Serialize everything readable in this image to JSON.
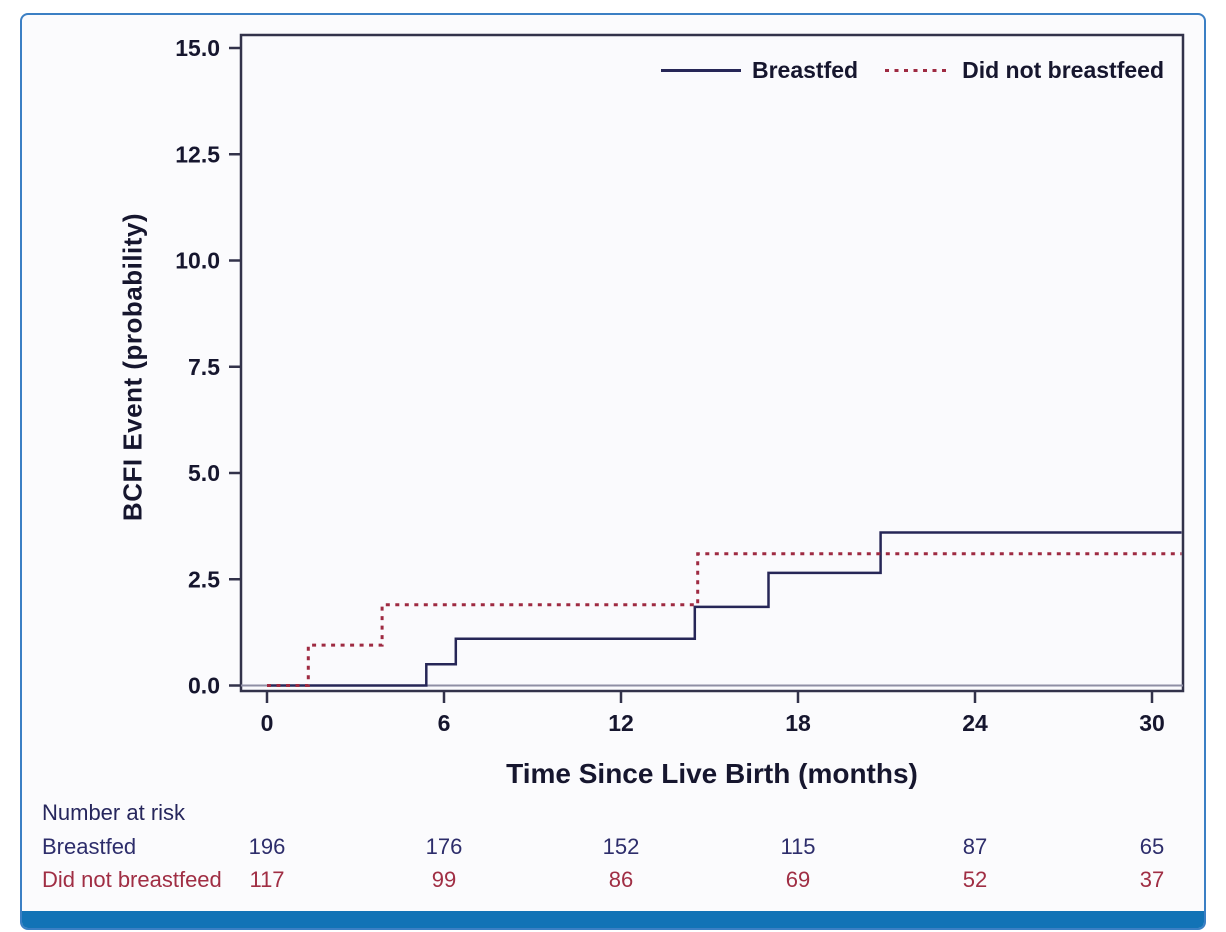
{
  "colors": {
    "frame": "#32324a",
    "tick_text": "#16162e",
    "axis_title_text": "#16162e",
    "zero_line": "#8f8fa5",
    "plot_background": "#fafafd",
    "figure_background": "#fbfbfd",
    "border": "#3b7fc4",
    "bottom_bar": "#1273b6",
    "risk_title_text": "#26265c"
  },
  "chart_data": {
    "type": "line",
    "subtype": "step-cumulative-incidence",
    "title": "",
    "xlabel": "Time Since Live Birth (months)",
    "ylabel": "BCFI Event (probability)",
    "xlim": [
      -1,
      31.2
    ],
    "ylim": [
      -0.2,
      15.35
    ],
    "xticks": [
      0,
      6,
      12,
      18,
      24,
      30
    ],
    "yticks": [
      0.0,
      2.5,
      5.0,
      7.5,
      10.0,
      12.5,
      15.0
    ],
    "grid": false,
    "legend_position": "top-right-inside",
    "zero_reference_line": true,
    "x_end": 31.0,
    "series": [
      {
        "name": "Breastfed",
        "color": "#262657",
        "line_style": "solid",
        "steps": [
          [
            0,
            0
          ],
          [
            5.4,
            0.5
          ],
          [
            6.4,
            1.1
          ],
          [
            14.5,
            1.85
          ],
          [
            17.0,
            2.65
          ],
          [
            20.8,
            3.6
          ]
        ]
      },
      {
        "name": "Did not breastfeed",
        "color": "#9e2a42",
        "line_style": "dotted",
        "steps": [
          [
            0,
            0
          ],
          [
            1.4,
            0.95
          ],
          [
            3.9,
            1.9
          ],
          [
            14.6,
            3.1
          ]
        ]
      }
    ],
    "number_at_risk": {
      "title": "Number at risk",
      "times": [
        0,
        6,
        12,
        18,
        24,
        30
      ],
      "series": [
        {
          "name": "Breastfed",
          "color": "#2d2d6b",
          "values": [
            196,
            176,
            152,
            115,
            87,
            65
          ]
        },
        {
          "name": "Did not breastfeed",
          "color": "#a02e44",
          "values": [
            117,
            99,
            86,
            69,
            52,
            37
          ]
        }
      ]
    }
  }
}
